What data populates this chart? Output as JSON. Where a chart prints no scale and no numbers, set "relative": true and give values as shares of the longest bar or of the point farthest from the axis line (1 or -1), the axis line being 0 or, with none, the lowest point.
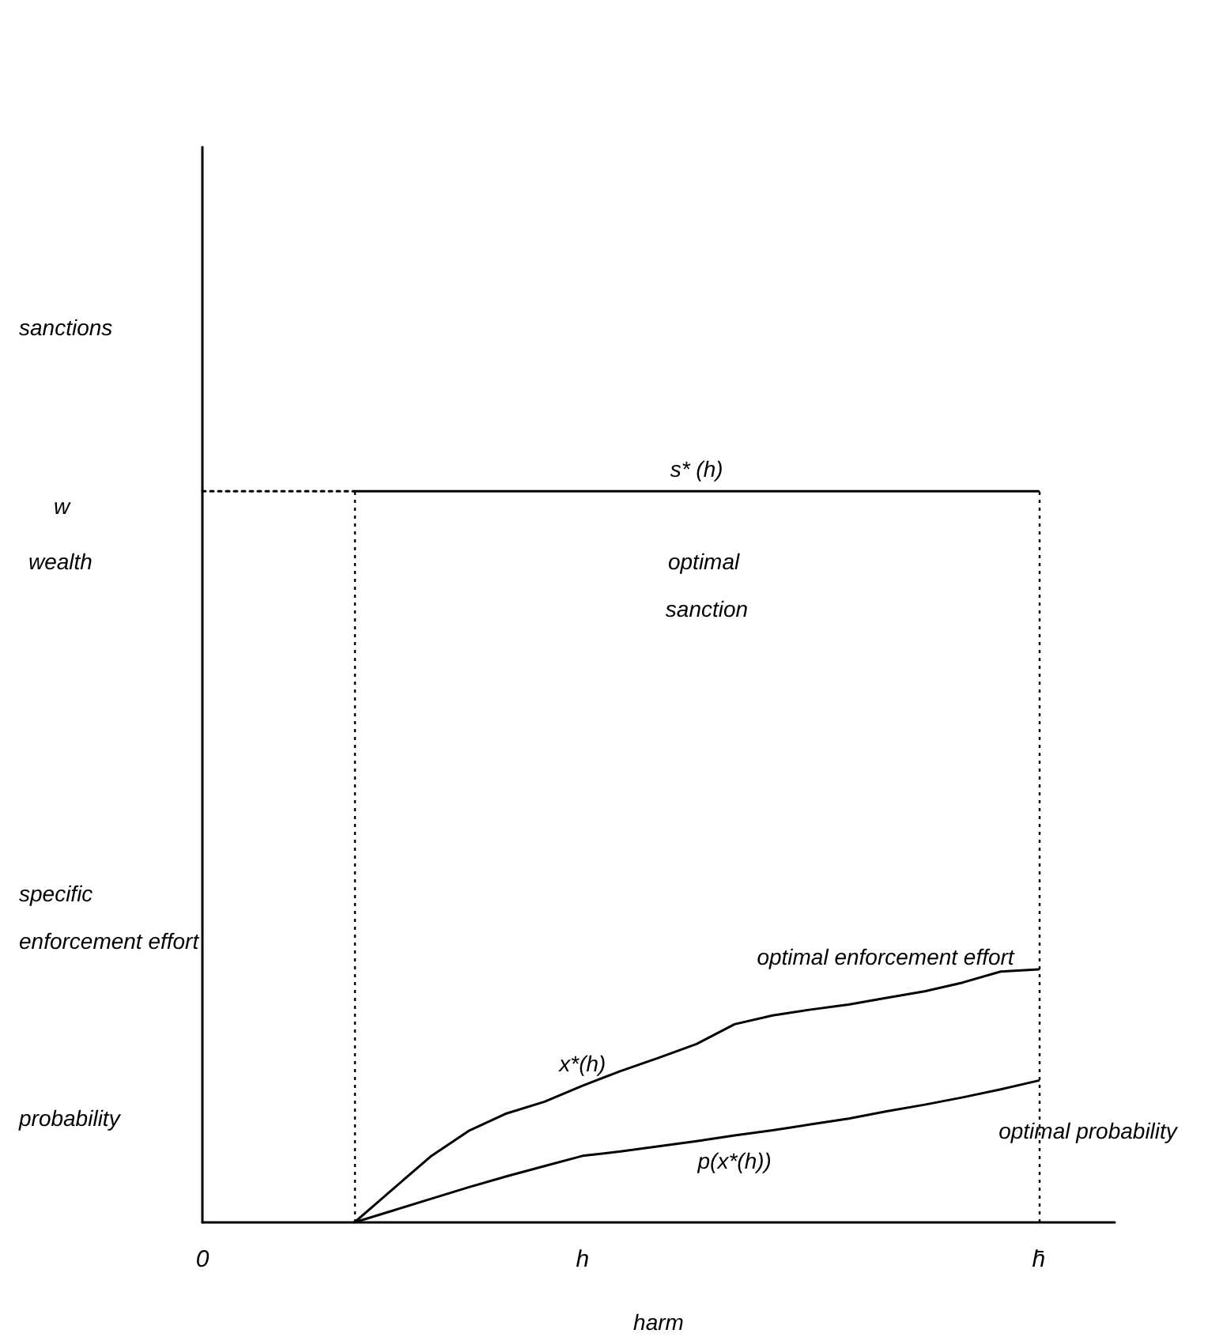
{
  "chart_data": {
    "type": "line",
    "relative": true,
    "xlabel": "harm",
    "categories": [
      "0",
      null,
      null,
      null,
      null,
      null,
      null,
      null,
      null,
      null,
      "h",
      null,
      null,
      null,
      null,
      null,
      null,
      null,
      null,
      null,
      null,
      null,
      "h̄",
      null,
      null
    ],
    "marker": "none",
    "line_style": "solid",
    "legend": false,
    "grid": false,
    "series": [
      {
        "name": "s* (h)",
        "color": "#000000",
        "values": [
          null,
          null,
          null,
          null,
          1,
          1,
          1,
          1,
          1,
          1,
          1,
          1,
          1,
          1,
          1,
          1,
          1,
          1,
          1,
          1,
          1,
          1,
          1,
          null,
          null
        ]
      },
      {
        "color": "#000000",
        "line_style": "dotted",
        "values": [
          1,
          1,
          1,
          1,
          1,
          null,
          null,
          null,
          null,
          null,
          null,
          null,
          null,
          null,
          null,
          null,
          null,
          null,
          null,
          null,
          null,
          null,
          null,
          null,
          null
        ]
      },
      {
        "name": "x*(h)",
        "color": "#000000",
        "values": [
          null,
          null,
          null,
          null,
          0,
          0.045,
          0.09,
          0.125,
          0.149,
          0.165,
          0.187,
          0.207,
          0.225,
          0.244,
          0.271,
          0.283,
          0.291,
          0.298,
          0.307,
          0.316,
          0.328,
          0.343,
          0.346,
          null,
          null
        ]
      },
      {
        "name": "p(x*(h))",
        "color": "#000000",
        "values": [
          null,
          null,
          null,
          null,
          0,
          0.016,
          0.032,
          0.048,
          0.063,
          0.077,
          0.091,
          0.097,
          0.104,
          0.111,
          0.119,
          0.126,
          0.134,
          0.142,
          0.152,
          0.161,
          0.171,
          0.182,
          0.194,
          null,
          null
        ]
      }
    ],
    "ref_lines": [
      {
        "axis": "x",
        "value": "h̄",
        "line_style": "dotted",
        "color": "#000000"
      }
    ],
    "annotations": [
      "sanctions",
      "w",
      "wealth",
      "specific enforcement effort",
      "probability",
      "optimal sanction",
      "optimal enforcement effort",
      "optimal probability"
    ]
  }
}
